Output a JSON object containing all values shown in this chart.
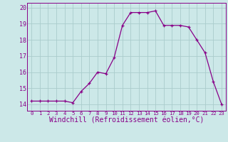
{
  "x": [
    0,
    1,
    2,
    3,
    4,
    5,
    6,
    7,
    8,
    9,
    10,
    11,
    12,
    13,
    14,
    15,
    16,
    17,
    18,
    19,
    20,
    21,
    22,
    23
  ],
  "y": [
    14.2,
    14.2,
    14.2,
    14.2,
    14.2,
    14.1,
    14.8,
    15.3,
    16.0,
    15.9,
    16.9,
    18.9,
    19.7,
    19.7,
    19.7,
    19.8,
    18.9,
    18.9,
    18.9,
    18.8,
    18.0,
    17.2,
    15.4,
    14.0
  ],
  "line_color": "#880088",
  "marker": "+",
  "marker_color": "#880088",
  "bg_color": "#cce8e8",
  "grid_color": "#aacccc",
  "xlabel": "Windchill (Refroidissement éolien,°C)",
  "xlabel_color": "#880088",
  "ylim": [
    13.6,
    20.3
  ],
  "xlim": [
    -0.5,
    23.5
  ],
  "yticks": [
    14,
    15,
    16,
    17,
    18,
    19,
    20
  ],
  "xticks": [
    0,
    1,
    2,
    3,
    4,
    5,
    6,
    7,
    8,
    9,
    10,
    11,
    12,
    13,
    14,
    15,
    16,
    17,
    18,
    19,
    20,
    21,
    22,
    23
  ],
  "tick_color": "#880088",
  "tick_labelsize": 6,
  "xlabel_fontsize": 7
}
